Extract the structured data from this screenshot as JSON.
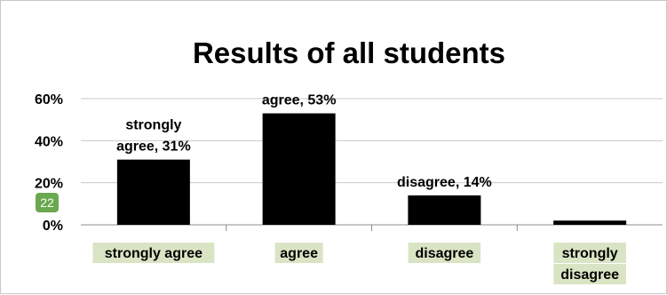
{
  "chart_data": {
    "type": "bar",
    "title": "Results of all students",
    "categories": [
      "strongly agree",
      "agree",
      "disagree",
      "strongly disagree"
    ],
    "values": [
      31,
      53,
      14,
      2
    ],
    "data_labels": [
      "strongly agree, 31%",
      "agree, 53%",
      "disagree, 14%",
      ""
    ],
    "y_ticks": [
      "0%",
      "20%",
      "40%",
      "60%"
    ],
    "ylim": [
      0,
      60
    ],
    "grid": true,
    "bar_color": "#000000",
    "category_highlight_color": "#d9e4c4"
  },
  "badge": {
    "text": "22",
    "color": "#6aa84f"
  }
}
